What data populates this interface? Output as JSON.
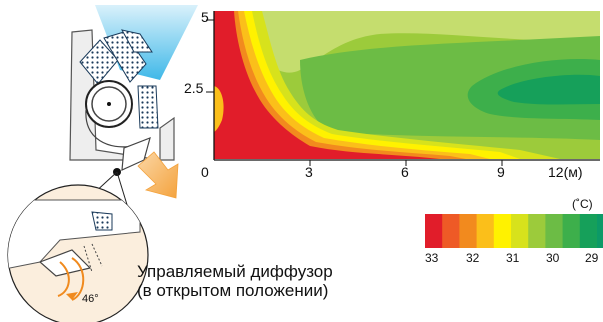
{
  "chart_data": {
    "type": "heatmap",
    "title": "",
    "xlabel": "",
    "ylabel": "",
    "x_ticks": [
      "0",
      "3",
      "6",
      "9",
      "12(м)"
    ],
    "y_ticks": [
      "5",
      "2.5"
    ],
    "xlim": [
      0,
      12
    ],
    "ylim": [
      0,
      5
    ]
  },
  "legend": {
    "unit": "(˚C)",
    "labels": [
      "33",
      "32",
      "31",
      "30",
      "29"
    ],
    "colors": [
      "#e11d2a",
      "#ee5a26",
      "#f28a1e",
      "#fbbf1a",
      "#fff200",
      "#d7e21c",
      "#9ccb3b",
      "#6cbc45",
      "#3daf4b",
      "#16a05a",
      "#0c9a67"
    ]
  },
  "caption": {
    "line1": "Управляемый диффузор",
    "line2": "(в открытом положении)"
  },
  "angle_label": "46°"
}
